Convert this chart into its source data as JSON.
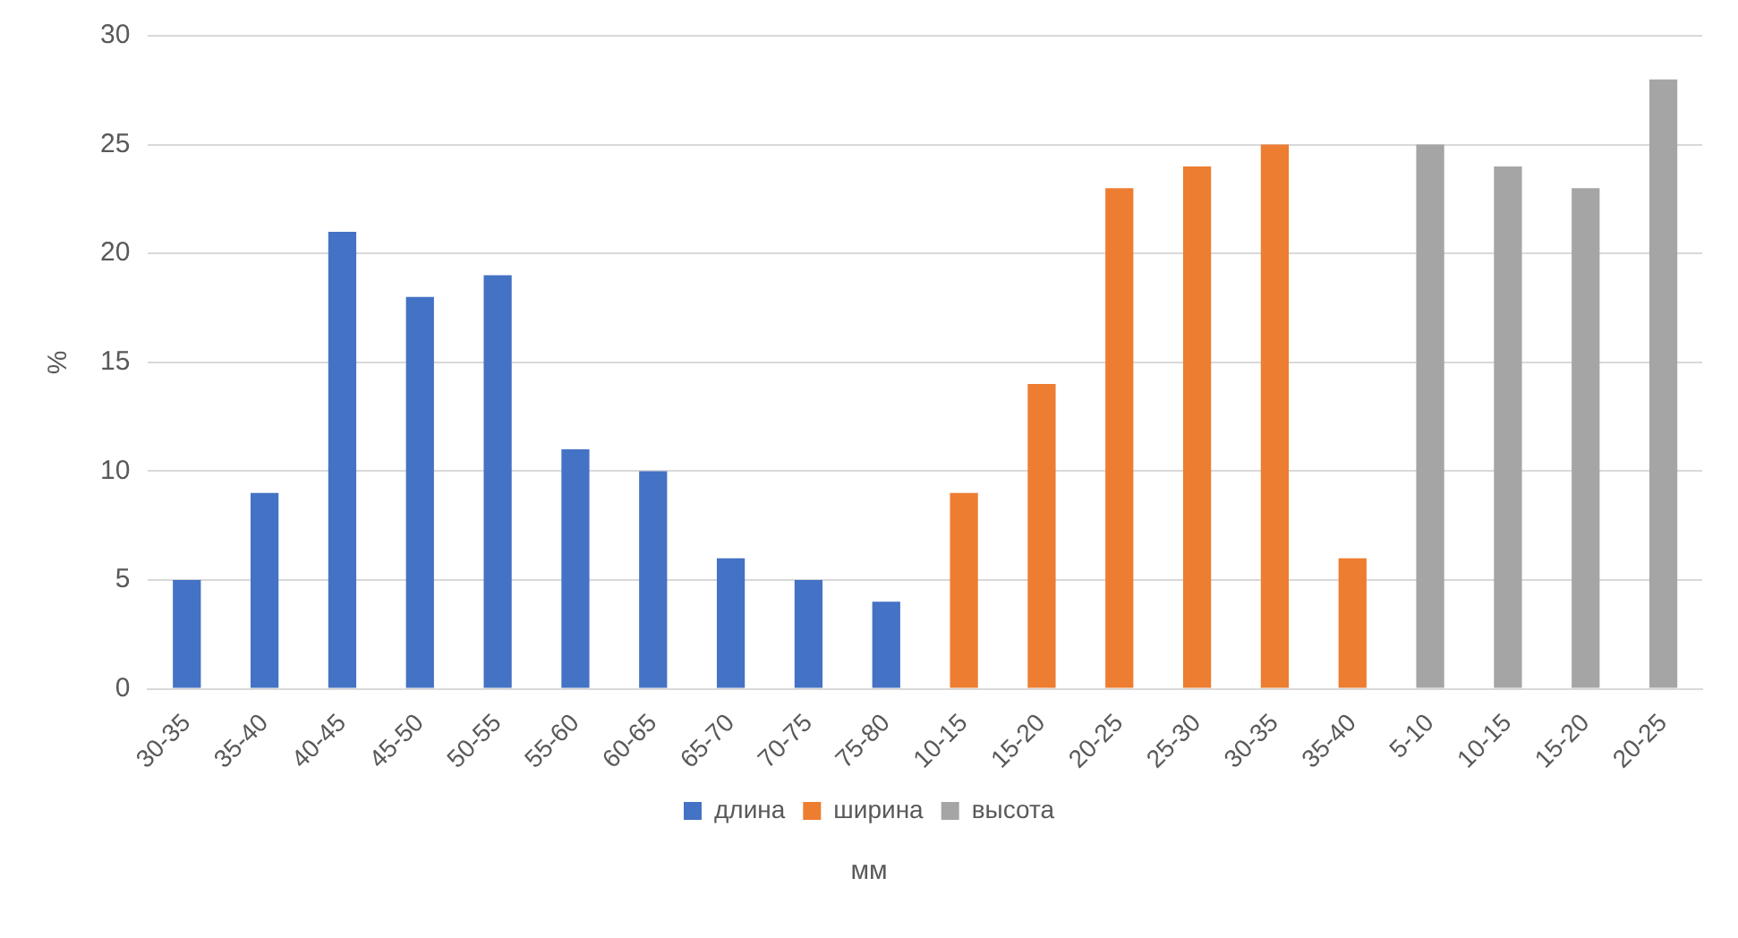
{
  "chart_data": {
    "type": "bar",
    "xlabel": "мм",
    "ylabel": "%",
    "categories": [
      "30-35",
      "35-40",
      "40-45",
      "45-50",
      "50-55",
      "55-60",
      "60-65",
      "65-70",
      "70-75",
      "75-80",
      "10-15",
      "15-20",
      "20-25",
      "25-30",
      "30-35",
      "35-40",
      "5-10",
      "10-15",
      "15-20",
      "20-25"
    ],
    "series": [
      {
        "name": "длина",
        "color": "#4472c4",
        "values": [
          5,
          9,
          21,
          18,
          19,
          11,
          10,
          6,
          5,
          4,
          null,
          null,
          null,
          null,
          null,
          null,
          null,
          null,
          null,
          null
        ]
      },
      {
        "name": "ширина",
        "color": "#ed7d31",
        "values": [
          null,
          null,
          null,
          null,
          null,
          null,
          null,
          null,
          null,
          null,
          9,
          14,
          23,
          24,
          25,
          6,
          null,
          null,
          null,
          null
        ]
      },
      {
        "name": "высота",
        "color": "#a5a5a5",
        "values": [
          null,
          null,
          null,
          null,
          null,
          null,
          null,
          null,
          null,
          null,
          null,
          null,
          null,
          null,
          null,
          null,
          25,
          24,
          23,
          28
        ]
      }
    ],
    "ylim": [
      0,
      30
    ],
    "yticks": [
      0,
      5,
      10,
      15,
      20,
      25,
      30
    ],
    "grid": "y",
    "legend": "bottom"
  }
}
